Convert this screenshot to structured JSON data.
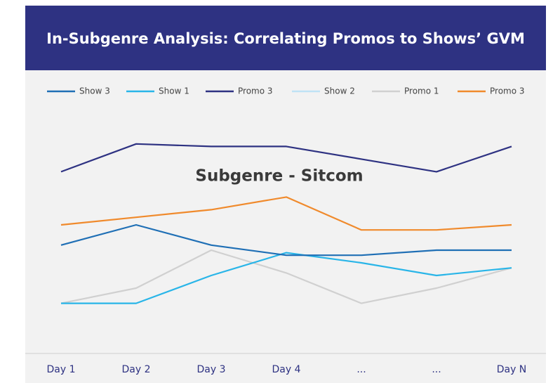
{
  "chart_data": {
    "type": "line",
    "title": "In-Subgenre Analysis: Correlating Promos to Shows’ GVM",
    "subtitle": "Subgenre - Sitcom",
    "categories": [
      "Day 1",
      "Day 2",
      "Day 3",
      "Day 4",
      "...",
      "...",
      "Day N"
    ],
    "ylim": [
      0,
      100
    ],
    "series": [
      {
        "name": "Show 3",
        "color": "#1f6fb5",
        "values": [
          42,
          50,
          42,
          38,
          38,
          40,
          40
        ]
      },
      {
        "name": "Show 1",
        "color": "#29b5e8",
        "values": [
          19,
          19,
          30,
          39,
          35,
          30,
          33
        ]
      },
      {
        "name": "Promo 3",
        "color": "#2e3282",
        "values": [
          71,
          82,
          81,
          81,
          76,
          71,
          81
        ]
      },
      {
        "name": "Show 2",
        "color": "#bfe3f5",
        "values": [
          null,
          null,
          null,
          null,
          null,
          null,
          null
        ]
      },
      {
        "name": "Promo 1",
        "color": "#d0d0d0",
        "values": [
          19,
          25,
          40,
          31,
          19,
          25,
          33
        ]
      },
      {
        "name": "Promo 3",
        "color": "#f08a2c",
        "values": [
          50,
          53,
          56,
          61,
          48,
          48,
          50
        ]
      }
    ]
  }
}
